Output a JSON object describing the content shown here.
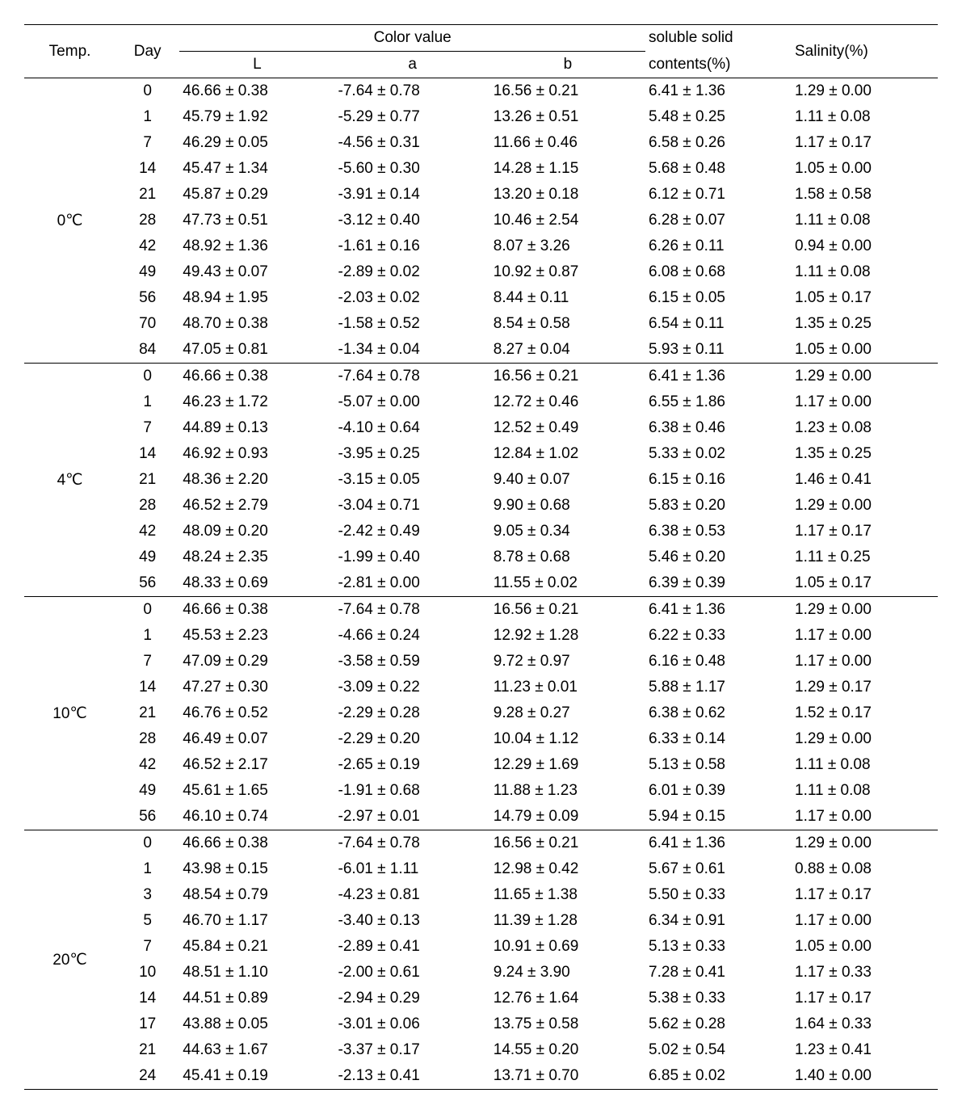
{
  "header": {
    "temp": "Temp.",
    "day": "Day",
    "colorValue": "Color value",
    "L": "L",
    "a": "a",
    "b": "b",
    "solubleSolid1": "soluble solid",
    "solubleSolid2": "contents(%)",
    "salinity": "Salinity(%)"
  },
  "groups": [
    {
      "temp": "0℃",
      "rows": [
        {
          "day": "0",
          "L": "46.66 ± 0.38",
          "a": "-7.64 ± 0.78",
          "b": "16.56 ± 0.21",
          "ssc": "6.41 ± 1.36",
          "sal": "1.29 ± 0.00"
        },
        {
          "day": "1",
          "L": "45.79 ± 1.92",
          "a": "-5.29 ± 0.77",
          "b": "13.26 ± 0.51",
          "ssc": "5.48 ± 0.25",
          "sal": "1.11 ± 0.08"
        },
        {
          "day": "7",
          "L": "46.29 ± 0.05",
          "a": "-4.56 ± 0.31",
          "b": "11.66 ± 0.46",
          "ssc": "6.58 ± 0.26",
          "sal": "1.17 ± 0.17"
        },
        {
          "day": "14",
          "L": "45.47 ± 1.34",
          "a": "-5.60 ± 0.30",
          "b": "14.28 ± 1.15",
          "ssc": "5.68 ± 0.48",
          "sal": "1.05 ± 0.00"
        },
        {
          "day": "21",
          "L": "45.87 ± 0.29",
          "a": "-3.91 ± 0.14",
          "b": "13.20 ± 0.18",
          "ssc": "6.12 ± 0.71",
          "sal": "1.58 ± 0.58"
        },
        {
          "day": "28",
          "L": "47.73 ± 0.51",
          "a": "-3.12 ± 0.40",
          "b": "10.46 ± 2.54",
          "ssc": "6.28 ± 0.07",
          "sal": "1.11 ± 0.08"
        },
        {
          "day": "42",
          "L": "48.92 ± 1.36",
          "a": "-1.61 ± 0.16",
          "b": "8.07 ± 3.26",
          "ssc": "6.26 ± 0.11",
          "sal": "0.94 ± 0.00"
        },
        {
          "day": "49",
          "L": "49.43 ± 0.07",
          "a": "-2.89 ± 0.02",
          "b": "10.92 ± 0.87",
          "ssc": "6.08 ± 0.68",
          "sal": "1.11 ± 0.08"
        },
        {
          "day": "56",
          "L": "48.94 ± 1.95",
          "a": "-2.03 ± 0.02",
          "b": "8.44 ± 0.11",
          "ssc": "6.15 ± 0.05",
          "sal": "1.05 ± 0.17"
        },
        {
          "day": "70",
          "L": "48.70 ± 0.38",
          "a": "-1.58 ± 0.52",
          "b": "8.54 ± 0.58",
          "ssc": "6.54 ± 0.11",
          "sal": "1.35 ± 0.25"
        },
        {
          "day": "84",
          "L": "47.05 ± 0.81",
          "a": "-1.34 ± 0.04",
          "b": "8.27 ± 0.04",
          "ssc": "5.93 ± 0.11",
          "sal": "1.05 ± 0.00"
        }
      ]
    },
    {
      "temp": "4℃",
      "rows": [
        {
          "day": "0",
          "L": "46.66 ± 0.38",
          "a": "-7.64 ± 0.78",
          "b": "16.56 ± 0.21",
          "ssc": "6.41 ± 1.36",
          "sal": "1.29 ± 0.00"
        },
        {
          "day": "1",
          "L": "46.23 ± 1.72",
          "a": "-5.07 ± 0.00",
          "b": "12.72 ± 0.46",
          "ssc": "6.55 ± 1.86",
          "sal": "1.17 ± 0.00"
        },
        {
          "day": "7",
          "L": "44.89 ± 0.13",
          "a": "-4.10 ± 0.64",
          "b": "12.52 ± 0.49",
          "ssc": "6.38 ± 0.46",
          "sal": "1.23 ± 0.08"
        },
        {
          "day": "14",
          "L": "46.92 ± 0.93",
          "a": "-3.95 ± 0.25",
          "b": "12.84 ± 1.02",
          "ssc": "5.33 ± 0.02",
          "sal": "1.35 ± 0.25"
        },
        {
          "day": "21",
          "L": "48.36 ± 2.20",
          "a": "-3.15 ± 0.05",
          "b": "9.40 ± 0.07",
          "ssc": "6.15 ± 0.16",
          "sal": "1.46 ± 0.41"
        },
        {
          "day": "28",
          "L": "46.52 ± 2.79",
          "a": "-3.04 ± 0.71",
          "b": "9.90 ± 0.68",
          "ssc": "5.83 ± 0.20",
          "sal": "1.29 ± 0.00"
        },
        {
          "day": "42",
          "L": "48.09 ± 0.20",
          "a": "-2.42 ± 0.49",
          "b": "9.05 ± 0.34",
          "ssc": "6.38 ± 0.53",
          "sal": "1.17 ± 0.17"
        },
        {
          "day": "49",
          "L": "48.24 ± 2.35",
          "a": "-1.99 ± 0.40",
          "b": "8.78 ± 0.68",
          "ssc": "5.46 ± 0.20",
          "sal": "1.11 ± 0.25"
        },
        {
          "day": "56",
          "L": "48.33 ± 0.69",
          "a": "-2.81 ± 0.00",
          "b": "11.55 ± 0.02",
          "ssc": "6.39 ± 0.39",
          "sal": "1.05 ± 0.17"
        }
      ]
    },
    {
      "temp": "10℃",
      "rows": [
        {
          "day": "0",
          "L": "46.66 ± 0.38",
          "a": "-7.64 ± 0.78",
          "b": "16.56 ± 0.21",
          "ssc": "6.41 ± 1.36",
          "sal": "1.29 ± 0.00"
        },
        {
          "day": "1",
          "L": "45.53 ± 2.23",
          "a": "-4.66 ± 0.24",
          "b": "12.92 ± 1.28",
          "ssc": "6.22 ± 0.33",
          "sal": "1.17 ± 0.00"
        },
        {
          "day": "7",
          "L": "47.09 ± 0.29",
          "a": "-3.58 ± 0.59",
          "b": "9.72 ± 0.97",
          "ssc": "6.16 ± 0.48",
          "sal": "1.17 ± 0.00"
        },
        {
          "day": "14",
          "L": "47.27 ± 0.30",
          "a": "-3.09 ± 0.22",
          "b": "11.23 ± 0.01",
          "ssc": "5.88 ± 1.17",
          "sal": "1.29 ± 0.17"
        },
        {
          "day": "21",
          "L": "46.76 ± 0.52",
          "a": "-2.29 ± 0.28",
          "b": "9.28 ± 0.27",
          "ssc": "6.38 ± 0.62",
          "sal": "1.52 ± 0.17"
        },
        {
          "day": "28",
          "L": "46.49 ± 0.07",
          "a": "-2.29 ± 0.20",
          "b": "10.04 ± 1.12",
          "ssc": "6.33 ± 0.14",
          "sal": "1.29 ± 0.00"
        },
        {
          "day": "42",
          "L": "46.52 ± 2.17",
          "a": "-2.65 ± 0.19",
          "b": "12.29 ± 1.69",
          "ssc": "5.13 ± 0.58",
          "sal": "1.11 ± 0.08"
        },
        {
          "day": "49",
          "L": "45.61 ± 1.65",
          "a": "-1.91 ± 0.68",
          "b": "11.88 ± 1.23",
          "ssc": "6.01 ± 0.39",
          "sal": "1.11 ± 0.08"
        },
        {
          "day": "56",
          "L": "46.10 ± 0.74",
          "a": "-2.97 ± 0.01",
          "b": "14.79 ± 0.09",
          "ssc": "5.94 ± 0.15",
          "sal": "1.17 ± 0.00"
        }
      ]
    },
    {
      "temp": "20℃",
      "rows": [
        {
          "day": "0",
          "L": "46.66 ± 0.38",
          "a": "-7.64 ± 0.78",
          "b": "16.56 ± 0.21",
          "ssc": "6.41 ± 1.36",
          "sal": "1.29 ± 0.00"
        },
        {
          "day": "1",
          "L": "43.98 ± 0.15",
          "a": "-6.01 ± 1.11",
          "b": "12.98 ± 0.42",
          "ssc": "5.67 ± 0.61",
          "sal": "0.88 ± 0.08"
        },
        {
          "day": "3",
          "L": "48.54 ± 0.79",
          "a": "-4.23 ± 0.81",
          "b": "11.65 ± 1.38",
          "ssc": "5.50 ± 0.33",
          "sal": "1.17 ± 0.17"
        },
        {
          "day": "5",
          "L": "46.70 ± 1.17",
          "a": "-3.40 ± 0.13",
          "b": "11.39 ± 1.28",
          "ssc": "6.34 ± 0.91",
          "sal": "1.17 ± 0.00"
        },
        {
          "day": "7",
          "L": "45.84 ± 0.21",
          "a": "-2.89 ± 0.41",
          "b": "10.91 ± 0.69",
          "ssc": "5.13 ± 0.33",
          "sal": "1.05 ± 0.00"
        },
        {
          "day": "10",
          "L": "48.51 ± 1.10",
          "a": "-2.00 ± 0.61",
          "b": "9.24 ± 3.90",
          "ssc": "7.28 ± 0.41",
          "sal": "1.17 ± 0.33"
        },
        {
          "day": "14",
          "L": "44.51 ± 0.89",
          "a": "-2.94 ± 0.29",
          "b": "12.76 ± 1.64",
          "ssc": "5.38 ± 0.33",
          "sal": "1.17 ± 0.17"
        },
        {
          "day": "17",
          "L": "43.88 ± 0.05",
          "a": "-3.01 ± 0.06",
          "b": "13.75 ± 0.58",
          "ssc": "5.62 ± 0.28",
          "sal": "1.64 ± 0.33"
        },
        {
          "day": "21",
          "L": "44.63 ± 1.67",
          "a": "-3.37 ± 0.17",
          "b": "14.55 ± 0.20",
          "ssc": "5.02 ± 0.54",
          "sal": "1.23 ± 0.41"
        },
        {
          "day": "24",
          "L": "45.41 ± 0.19",
          "a": "-2.13 ± 0.41",
          "b": "13.71 ± 0.70",
          "ssc": "6.85 ± 0.02",
          "sal": "1.40 ± 0.00"
        }
      ]
    }
  ]
}
